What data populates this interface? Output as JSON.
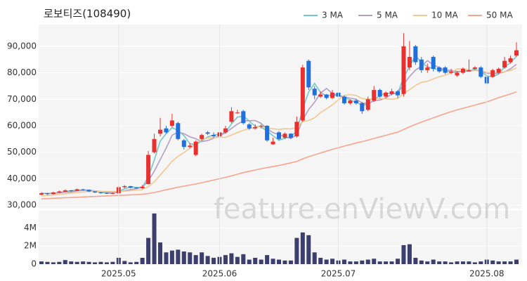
{
  "watermark": "feature.enViewV.com",
  "chart_data": [
    {
      "type": "candlestick",
      "title": "로보티즈(108490)",
      "ylim": [
        28700,
        98200
      ],
      "yticks": [
        {
          "value": 30000,
          "label": "30,000"
        },
        {
          "value": 40000,
          "label": "40,000"
        },
        {
          "value": 50000,
          "label": "50,000"
        },
        {
          "value": 60000,
          "label": "60,000"
        },
        {
          "value": 70000,
          "label": "70,000"
        },
        {
          "value": 80000,
          "label": "80,000"
        },
        {
          "value": 90000,
          "label": "90,000"
        }
      ],
      "grid": true,
      "legend": "top-right",
      "up_color": "#e8312f",
      "down_color": "#1f6fdc",
      "open": [
        34000,
        34500,
        34200,
        34800,
        35100,
        35600,
        35400,
        36000,
        35800,
        35200,
        34800,
        34600,
        34400,
        34500,
        36800,
        37200,
        36600,
        36400,
        38000,
        50000,
        57000,
        59000,
        60000,
        61000,
        54500,
        52000,
        49000,
        55000,
        57500,
        56500,
        56000,
        57500,
        61500,
        64800,
        65500,
        60500,
        59000,
        59800,
        60000,
        53000,
        57500,
        55500,
        57000,
        56000,
        62000,
        84500,
        74000,
        71000,
        71800,
        70500,
        72500,
        71000,
        68500,
        69500,
        68500,
        66000,
        69500,
        73500,
        71000,
        72000,
        73000,
        72000,
        82000,
        90000,
        85000,
        81000,
        86000,
        82000,
        82000,
        80000,
        79000,
        80000,
        80500,
        81500,
        82000,
        78500,
        78500,
        80000,
        82000,
        84000,
        86500
      ],
      "high": [
        34900,
        34700,
        35100,
        35500,
        36000,
        35800,
        36300,
        36200,
        35900,
        35300,
        35000,
        34800,
        34800,
        37400,
        37600,
        37300,
        36800,
        37600,
        50500,
        57000,
        63000,
        60000,
        64500,
        61500,
        55000,
        53500,
        54500,
        57000,
        58000,
        57500,
        58000,
        60000,
        67000,
        66000,
        66000,
        61000,
        60500,
        60500,
        60200,
        55500,
        58000,
        57500,
        57200,
        63500,
        83000,
        85000,
        75000,
        73000,
        72000,
        73500,
        73000,
        71500,
        70000,
        70000,
        69000,
        71000,
        75000,
        74000,
        73000,
        74000,
        73500,
        95000,
        92000,
        90500,
        86000,
        83500,
        86500,
        82500,
        82500,
        81500,
        80500,
        82000,
        85000,
        82500,
        82500,
        79000,
        81500,
        82000,
        86000,
        86500,
        91500
      ],
      "low": [
        33800,
        33900,
        34000,
        34600,
        34900,
        35100,
        35300,
        35500,
        35000,
        34600,
        34400,
        34200,
        34200,
        34400,
        36400,
        36300,
        36100,
        36200,
        37800,
        49500,
        56000,
        57000,
        59500,
        54500,
        51000,
        51500,
        48500,
        54500,
        56500,
        55500,
        55800,
        57000,
        61000,
        64500,
        60500,
        58500,
        58500,
        59000,
        54000,
        52800,
        54500,
        55000,
        55000,
        55500,
        61500,
        73500,
        70000,
        70500,
        70000,
        70000,
        70500,
        68000,
        68000,
        68000,
        64500,
        65500,
        69000,
        70500,
        70500,
        71500,
        70500,
        71000,
        81000,
        83000,
        80000,
        80000,
        80500,
        80000,
        79500,
        79500,
        78500,
        79500,
        80500,
        81000,
        78000,
        75500,
        78000,
        79500,
        81500,
        83500,
        86000
      ],
      "close": [
        34500,
        34200,
        34800,
        35200,
        35600,
        35400,
        36000,
        35800,
        35200,
        34800,
        34600,
        34400,
        34500,
        36800,
        37200,
        36600,
        36400,
        37000,
        49000,
        55000,
        58500,
        57500,
        62000,
        55000,
        52000,
        52500,
        54000,
        56500,
        57000,
        56000,
        57500,
        59000,
        65500,
        65000,
        61000,
        59000,
        59500,
        60000,
        54500,
        54000,
        55000,
        57000,
        55500,
        61500,
        82000,
        74500,
        71500,
        71800,
        70500,
        72500,
        71000,
        68500,
        69500,
        68500,
        65500,
        70000,
        73500,
        71000,
        72500,
        73000,
        71500,
        90000,
        86000,
        84000,
        81000,
        82000,
        81500,
        80500,
        80000,
        80500,
        80000,
        81500,
        81000,
        82000,
        78500,
        76000,
        81000,
        81500,
        84500,
        85500,
        88500
      ],
      "series": [
        {
          "name": "3 MA",
          "color": "#72c8c8",
          "values": [
            34500,
            34400,
            34500,
            34700,
            35200,
            35400,
            35700,
            35700,
            35700,
            35300,
            34900,
            34600,
            34500,
            35200,
            36200,
            36900,
            36700,
            36700,
            40800,
            47000,
            54200,
            57000,
            59300,
            58200,
            56300,
            53200,
            52800,
            54300,
            55800,
            56500,
            56800,
            57500,
            60700,
            63200,
            63800,
            61700,
            59800,
            59500,
            58000,
            56200,
            54500,
            55300,
            55800,
            58000,
            66300,
            72700,
            76000,
            72600,
            71300,
            71600,
            71300,
            70700,
            69700,
            68800,
            67800,
            68000,
            69700,
            71500,
            72300,
            72200,
            72300,
            78200,
            82500,
            86700,
            83700,
            82300,
            81500,
            81300,
            80700,
            80300,
            80200,
            80700,
            80800,
            81500,
            80500,
            78800,
            78500,
            79500,
            82300,
            83800,
            86200
          ]
        },
        {
          "name": "5 MA",
          "color": "#b39ec8",
          "values": [
            34500,
            34400,
            34500,
            34700,
            34900,
            35000,
            35400,
            35600,
            35600,
            35400,
            35200,
            35000,
            34700,
            35000,
            35500,
            35900,
            36300,
            36800,
            39200,
            42800,
            47200,
            51500,
            56400,
            57600,
            57000,
            55800,
            55100,
            54000,
            54400,
            55300,
            56300,
            57300,
            59000,
            60600,
            61800,
            61900,
            62000,
            60900,
            58800,
            57400,
            56600,
            55900,
            55200,
            56600,
            62200,
            66100,
            68900,
            72300,
            74100,
            72200,
            71500,
            70900,
            70400,
            70000,
            68600,
            68400,
            69400,
            69700,
            70500,
            72000,
            72300,
            75600,
            78600,
            81000,
            82500,
            84600,
            83000,
            81900,
            81000,
            80900,
            80500,
            80500,
            80600,
            81000,
            80600,
            79800,
            79700,
            79800,
            80300,
            81500,
            83200
          ]
        },
        {
          "name": "10 MA",
          "color": "#f2c790",
          "values": [
            33500,
            33700,
            33900,
            34100,
            34300,
            34600,
            34800,
            35000,
            35200,
            35300,
            35200,
            35200,
            35200,
            35200,
            35300,
            35500,
            35700,
            35900,
            37000,
            38800,
            41400,
            43900,
            46600,
            48400,
            49900,
            51500,
            53200,
            54800,
            55400,
            55500,
            55700,
            55600,
            56500,
            57400,
            58300,
            58900,
            59400,
            59700,
            59000,
            58900,
            58600,
            58900,
            58800,
            59300,
            61600,
            62000,
            63000,
            65000,
            66400,
            67900,
            69800,
            71400,
            71800,
            71400,
            70300,
            70000,
            70200,
            70300,
            70200,
            70000,
            70300,
            72300,
            73600,
            75200,
            76400,
            76800,
            77700,
            78500,
            79100,
            80000,
            81400,
            81600,
            81000,
            81000,
            80800,
            80100,
            80000,
            80100,
            80400,
            80900,
            81800
          ]
        },
        {
          "name": "50 MA",
          "color": "#f5a58e",
          "values": [
            32400,
            32500,
            32600,
            32700,
            32800,
            32900,
            33000,
            33100,
            33200,
            33300,
            33400,
            33500,
            33600,
            33700,
            33800,
            33900,
            34000,
            34100,
            34400,
            34800,
            35300,
            35800,
            36300,
            36800,
            37200,
            37600,
            38000,
            38500,
            39000,
            39500,
            40000,
            40500,
            41100,
            41700,
            42300,
            42800,
            43300,
            43800,
            44200,
            44600,
            45000,
            45500,
            46000,
            46500,
            47500,
            48300,
            49000,
            49700,
            50400,
            51100,
            51700,
            52300,
            52900,
            53500,
            54000,
            54600,
            55200,
            55800,
            56400,
            57000,
            57600,
            58600,
            59600,
            60500,
            61400,
            62200,
            63000,
            63800,
            64600,
            65300,
            66000,
            66600,
            67200,
            67800,
            68400,
            69000,
            69800,
            70600,
            71300,
            72000,
            72800
          ]
        }
      ]
    },
    {
      "type": "bar",
      "color": "#3c3f6e",
      "ylim": [
        0,
        5900000
      ],
      "yticks": [
        0,
        {
          "value": 2000000,
          "label": "2M"
        },
        {
          "value": 4000000,
          "label": "4M"
        }
      ],
      "categories": [
        null,
        null,
        null,
        null,
        null,
        null,
        null,
        null,
        null,
        null,
        null,
        null,
        null,
        "2025.05",
        null,
        null,
        null,
        null,
        null,
        null,
        null,
        null,
        null,
        null,
        null,
        null,
        null,
        null,
        null,
        null,
        "2025.06",
        null,
        null,
        null,
        null,
        null,
        null,
        null,
        null,
        null,
        null,
        null,
        null,
        null,
        null,
        null,
        null,
        null,
        null,
        null,
        "2025.07",
        null,
        null,
        null,
        null,
        null,
        null,
        null,
        null,
        null,
        null,
        null,
        null,
        null,
        null,
        null,
        null,
        null,
        null,
        null,
        null,
        null,
        null,
        null,
        null,
        "2025.08",
        null,
        null,
        null,
        null,
        null
      ],
      "values": [
        300000,
        250000,
        200000,
        250000,
        450000,
        300000,
        250000,
        300000,
        250000,
        200000,
        250000,
        200000,
        250000,
        700000,
        350000,
        200000,
        250000,
        700000,
        2900000,
        5600000,
        2400000,
        1300000,
        1500000,
        1600000,
        1400000,
        1300000,
        1000000,
        1300000,
        900000,
        700000,
        800000,
        1000000,
        1200000,
        800000,
        1100000,
        500000,
        700000,
        500000,
        1000000,
        600000,
        500000,
        400000,
        400000,
        2900000,
        3500000,
        3200000,
        1300000,
        700000,
        500000,
        600000,
        400000,
        500000,
        300000,
        300000,
        400000,
        500000,
        600000,
        300000,
        300000,
        300000,
        600000,
        2100000,
        2200000,
        700000,
        400000,
        300000,
        500000,
        300000,
        300000,
        200000,
        300000,
        300000,
        300000,
        200000,
        300000,
        500000,
        400000,
        300000,
        300000,
        300000,
        500000
      ]
    }
  ]
}
